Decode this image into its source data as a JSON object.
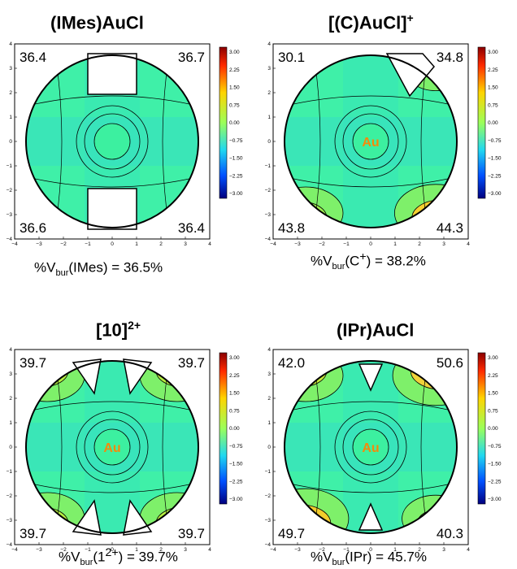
{
  "panels": [
    {
      "id": "imes",
      "title_main": "(IMes)AuCl",
      "title_sup": "",
      "au_label": "",
      "quadrants": {
        "tl": "36.4",
        "tr": "36.7",
        "bl": "36.6",
        "br": "36.4"
      },
      "caption_pre": "%V",
      "caption_sub": "bur",
      "caption_mid": "(IMes)",
      "caption_sup": "",
      "caption_post": " = 36.5%"
    },
    {
      "id": "c-plus",
      "title_main": "[(C)AuCl]",
      "title_sup": "+",
      "au_label": "Au",
      "quadrants": {
        "tl": "30.1",
        "tr": "34.8",
        "bl": "43.8",
        "br": "44.3"
      },
      "caption_pre": "%V",
      "caption_sub": "bur",
      "caption_mid": "(C",
      "caption_sup": "+",
      "caption_post": ") = 38.2%"
    },
    {
      "id": "ten",
      "title_main": "[10]",
      "title_sup": "2+",
      "au_label": "Au",
      "quadrants": {
        "tl": "39.7",
        "tr": "39.7",
        "bl": "39.7",
        "br": "39.7"
      },
      "caption_pre": "%V",
      "caption_sub": "bur",
      "caption_mid": "(1",
      "caption_sup": "2+",
      "caption_post": ") = 39.7%"
    },
    {
      "id": "ipr",
      "title_main": "(IPr)AuCl",
      "title_sup": "",
      "au_label": "Au",
      "quadrants": {
        "tl": "42.0",
        "tr": "50.6",
        "bl": "49.7",
        "br": "40.3"
      },
      "caption_pre": "%V",
      "caption_sub": "bur",
      "caption_mid": "(IPr)",
      "caption_sup": "",
      "caption_post": " = 45.7%"
    }
  ],
  "axis_ticks": [
    "−4",
    "−3",
    "−2",
    "−1",
    "0",
    "1",
    "2",
    "3",
    "4"
  ],
  "colorbar_ticks": [
    "3.00",
    "2.25",
    "1.50",
    "0.75",
    "0.00",
    "−0.75",
    "−1.50",
    "−2.25",
    "−3.00"
  ],
  "colors": {
    "au_label": "#f58a0a",
    "map_base": "#3ff0a8",
    "outline": "#000000"
  }
}
